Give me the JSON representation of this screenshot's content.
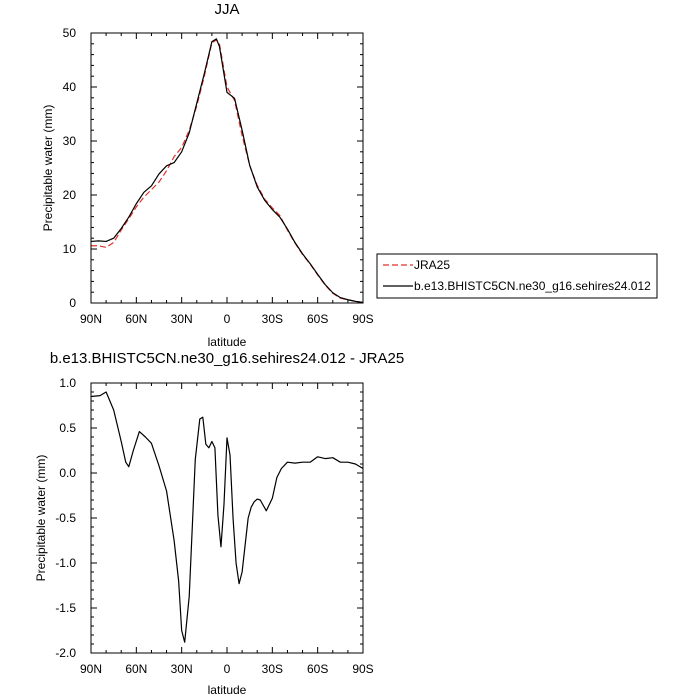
{
  "chart_data": [
    {
      "type": "line",
      "title": "JJA",
      "xlabel": "latitude",
      "ylabel": "Precipitable water (mm)",
      "xlim": [
        90,
        -90
      ],
      "ylim": [
        0,
        50
      ],
      "x_ticks": [
        90,
        60,
        30,
        0,
        -30,
        -60,
        -90
      ],
      "x_tick_labels": [
        "90N",
        "60N",
        "30N",
        "0",
        "30S",
        "60S",
        "90S"
      ],
      "y_ticks": [
        0,
        10,
        20,
        30,
        40,
        50
      ],
      "y_tick_labels": [
        "0",
        "10",
        "20",
        "30",
        "40",
        "50"
      ],
      "legend_position": "outside-right",
      "series": [
        {
          "name": "JRA25",
          "color": "#e0302a",
          "dash": "dashed",
          "x": [
            90,
            85,
            80,
            75,
            70,
            65,
            60,
            55,
            50,
            45,
            40,
            35,
            30,
            25,
            20,
            15,
            10,
            7,
            5,
            0,
            -5,
            -10,
            -15,
            -20,
            -25,
            -30,
            -35,
            -40,
            -45,
            -50,
            -55,
            -60,
            -65,
            -70,
            -75,
            -80,
            -85,
            -90
          ],
          "y": [
            10.6,
            10.6,
            10.3,
            11.2,
            13.5,
            15.6,
            17.8,
            19.6,
            21.0,
            22.4,
            24.5,
            27.1,
            28.8,
            32.0,
            36.5,
            42.0,
            48.2,
            48.7,
            48.0,
            40.0,
            37.5,
            31.0,
            25.5,
            21.8,
            19.2,
            17.6,
            16.2,
            13.5,
            11.1,
            9.0,
            7.2,
            5.2,
            3.3,
            1.8,
            0.9,
            0.6,
            0.3,
            0.1
          ]
        },
        {
          "name": "b.e13.BHISTC5CN.ne30_g16.sehires24.012",
          "color": "#000000",
          "dash": "solid",
          "x": [
            90,
            85,
            80,
            75,
            70,
            65,
            60,
            55,
            50,
            45,
            40,
            35,
            30,
            25,
            20,
            15,
            10,
            7,
            5,
            0,
            -5,
            -10,
            -15,
            -20,
            -25,
            -30,
            -35,
            -40,
            -45,
            -50,
            -55,
            -60,
            -65,
            -70,
            -75,
            -80,
            -85,
            -90
          ],
          "y": [
            11.4,
            11.5,
            11.4,
            12.0,
            13.8,
            15.9,
            18.4,
            20.5,
            21.7,
            23.9,
            25.4,
            26.0,
            28.0,
            31.5,
            37.0,
            42.5,
            48.4,
            48.9,
            47.5,
            39.0,
            37.9,
            32.0,
            25.5,
            21.5,
            19.0,
            17.3,
            15.9,
            13.7,
            11.2,
            9.1,
            7.3,
            5.3,
            3.4,
            1.9,
            1.0,
            0.6,
            0.3,
            0.1
          ]
        }
      ]
    },
    {
      "type": "line",
      "title": "b.e13.BHISTC5CN.ne30_g16.sehires24.012 - JRA25",
      "xlabel": "latitude",
      "ylabel": "Precipitable water (mm)",
      "xlim": [
        90,
        -90
      ],
      "ylim": [
        -2.0,
        1.0
      ],
      "x_ticks": [
        90,
        60,
        30,
        0,
        -30,
        -60,
        -90
      ],
      "x_tick_labels": [
        "90N",
        "60N",
        "30N",
        "0",
        "30S",
        "60S",
        "90S"
      ],
      "y_ticks": [
        1.0,
        0.5,
        0.0,
        -0.5,
        -1.0,
        -1.5,
        -2.0
      ],
      "y_tick_labels": [
        "1.0",
        "0.5",
        "0.0",
        "-0.5",
        "-1.0",
        "-1.5",
        "-2.0"
      ],
      "series": [
        {
          "color": "#000000",
          "dash": "solid",
          "x": [
            90,
            84,
            80,
            75,
            70,
            67,
            65,
            62,
            58,
            54,
            50,
            45,
            40,
            35,
            32,
            30,
            28,
            25,
            21,
            18,
            16,
            14,
            12,
            10,
            8,
            6,
            4,
            2,
            0,
            -2,
            -4,
            -6,
            -8,
            -10,
            -12,
            -14,
            -16,
            -18,
            -20,
            -22,
            -26,
            -30,
            -33,
            -36,
            -40,
            -45,
            -50,
            -55,
            -60,
            -65,
            -70,
            -75,
            -80,
            -85,
            -90
          ],
          "y": [
            0.85,
            0.86,
            0.9,
            0.7,
            0.35,
            0.12,
            0.07,
            0.25,
            0.46,
            0.4,
            0.33,
            0.08,
            -0.2,
            -0.75,
            -1.2,
            -1.75,
            -1.88,
            -1.37,
            0.15,
            0.6,
            0.62,
            0.32,
            0.28,
            0.35,
            0.28,
            -0.47,
            -0.82,
            -0.35,
            0.39,
            0.2,
            -0.5,
            -1.0,
            -1.23,
            -1.1,
            -0.8,
            -0.5,
            -0.38,
            -0.32,
            -0.29,
            -0.3,
            -0.42,
            -0.28,
            -0.05,
            0.05,
            0.12,
            0.11,
            0.12,
            0.12,
            0.18,
            0.16,
            0.17,
            0.12,
            0.12,
            0.1,
            0.05
          ]
        }
      ]
    }
  ]
}
